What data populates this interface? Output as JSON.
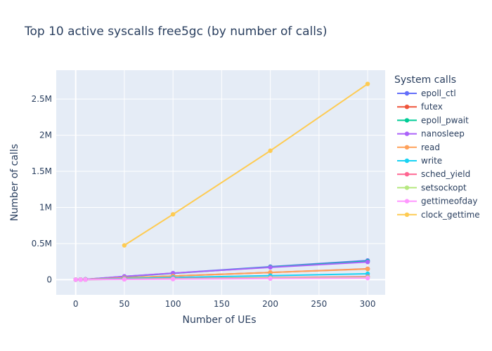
{
  "chart_data": {
    "type": "line",
    "title": "Top 10 active syscalls free5gc (by number of calls)",
    "xlabel": "Number of UEs",
    "ylabel": "Number of calls",
    "xlim": [
      -20,
      318
    ],
    "ylim": [
      -210000,
      2900000
    ],
    "xticks": [
      0,
      50,
      100,
      150,
      200,
      250,
      300
    ],
    "xtick_labels": [
      "0",
      "50",
      "100",
      "150",
      "200",
      "250",
      "300"
    ],
    "yticks": [
      0,
      500000,
      1000000,
      1500000,
      2000000,
      2500000
    ],
    "ytick_labels": [
      "0",
      "0.5M",
      "1M",
      "1.5M",
      "2M",
      "2.5M"
    ],
    "grid": true,
    "legend_title": "System calls",
    "legend_position": "right",
    "plot_bg": "#E5ECF6",
    "series": [
      {
        "name": "epoll_ctl",
        "color": "#636EFA",
        "x": [
          0,
          5,
          10,
          50,
          100,
          200,
          300
        ],
        "y": [
          0,
          2000,
          5000,
          45000,
          90000,
          180000,
          265000
        ]
      },
      {
        "name": "futex",
        "color": "#EF553B",
        "x": [
          0,
          5,
          10,
          50,
          100,
          200,
          300
        ],
        "y": [
          0,
          1500,
          3000,
          25000,
          50000,
          100000,
          150000
        ]
      },
      {
        "name": "epoll_pwait",
        "color": "#00CC96",
        "x": [
          0,
          5,
          10,
          50,
          100,
          200,
          300
        ],
        "y": [
          0,
          1800,
          4000,
          42000,
          87000,
          175000,
          255000
        ]
      },
      {
        "name": "nanosleep",
        "color": "#AB63FA",
        "x": [
          0,
          5,
          10,
          50,
          100,
          200,
          300
        ],
        "y": [
          0,
          2000,
          4500,
          45000,
          90000,
          170000,
          245000
        ]
      },
      {
        "name": "read",
        "color": "#FFA15A",
        "x": [
          0,
          5,
          10,
          50,
          100,
          200,
          300
        ],
        "y": [
          0,
          1000,
          2500,
          25000,
          50000,
          100000,
          148000
        ]
      },
      {
        "name": "write",
        "color": "#19D3F3",
        "x": [
          0,
          5,
          10,
          50,
          100,
          200,
          300
        ],
        "y": [
          0,
          500,
          1000,
          15000,
          30000,
          55000,
          82000
        ]
      },
      {
        "name": "sched_yield",
        "color": "#FF6692",
        "x": [
          0,
          5,
          10,
          50,
          100,
          200,
          300
        ],
        "y": [
          0,
          300,
          800,
          8000,
          15000,
          28000,
          42000
        ]
      },
      {
        "name": "setsockopt",
        "color": "#B6E880",
        "x": [
          0,
          5,
          10,
          50,
          100,
          200,
          300
        ],
        "y": [
          0,
          300,
          700,
          6000,
          12000,
          22000,
          32000
        ]
      },
      {
        "name": "gettimeofday",
        "color": "#FF97FF",
        "x": [
          0,
          5,
          10,
          50,
          100,
          200,
          300
        ],
        "y": [
          0,
          200,
          500,
          4000,
          8000,
          15000,
          22000
        ]
      },
      {
        "name": "clock_gettime",
        "color": "#FECB52",
        "x": [
          50,
          100,
          200,
          300
        ],
        "y": [
          475000,
          905000,
          1785000,
          2710000
        ]
      }
    ]
  }
}
